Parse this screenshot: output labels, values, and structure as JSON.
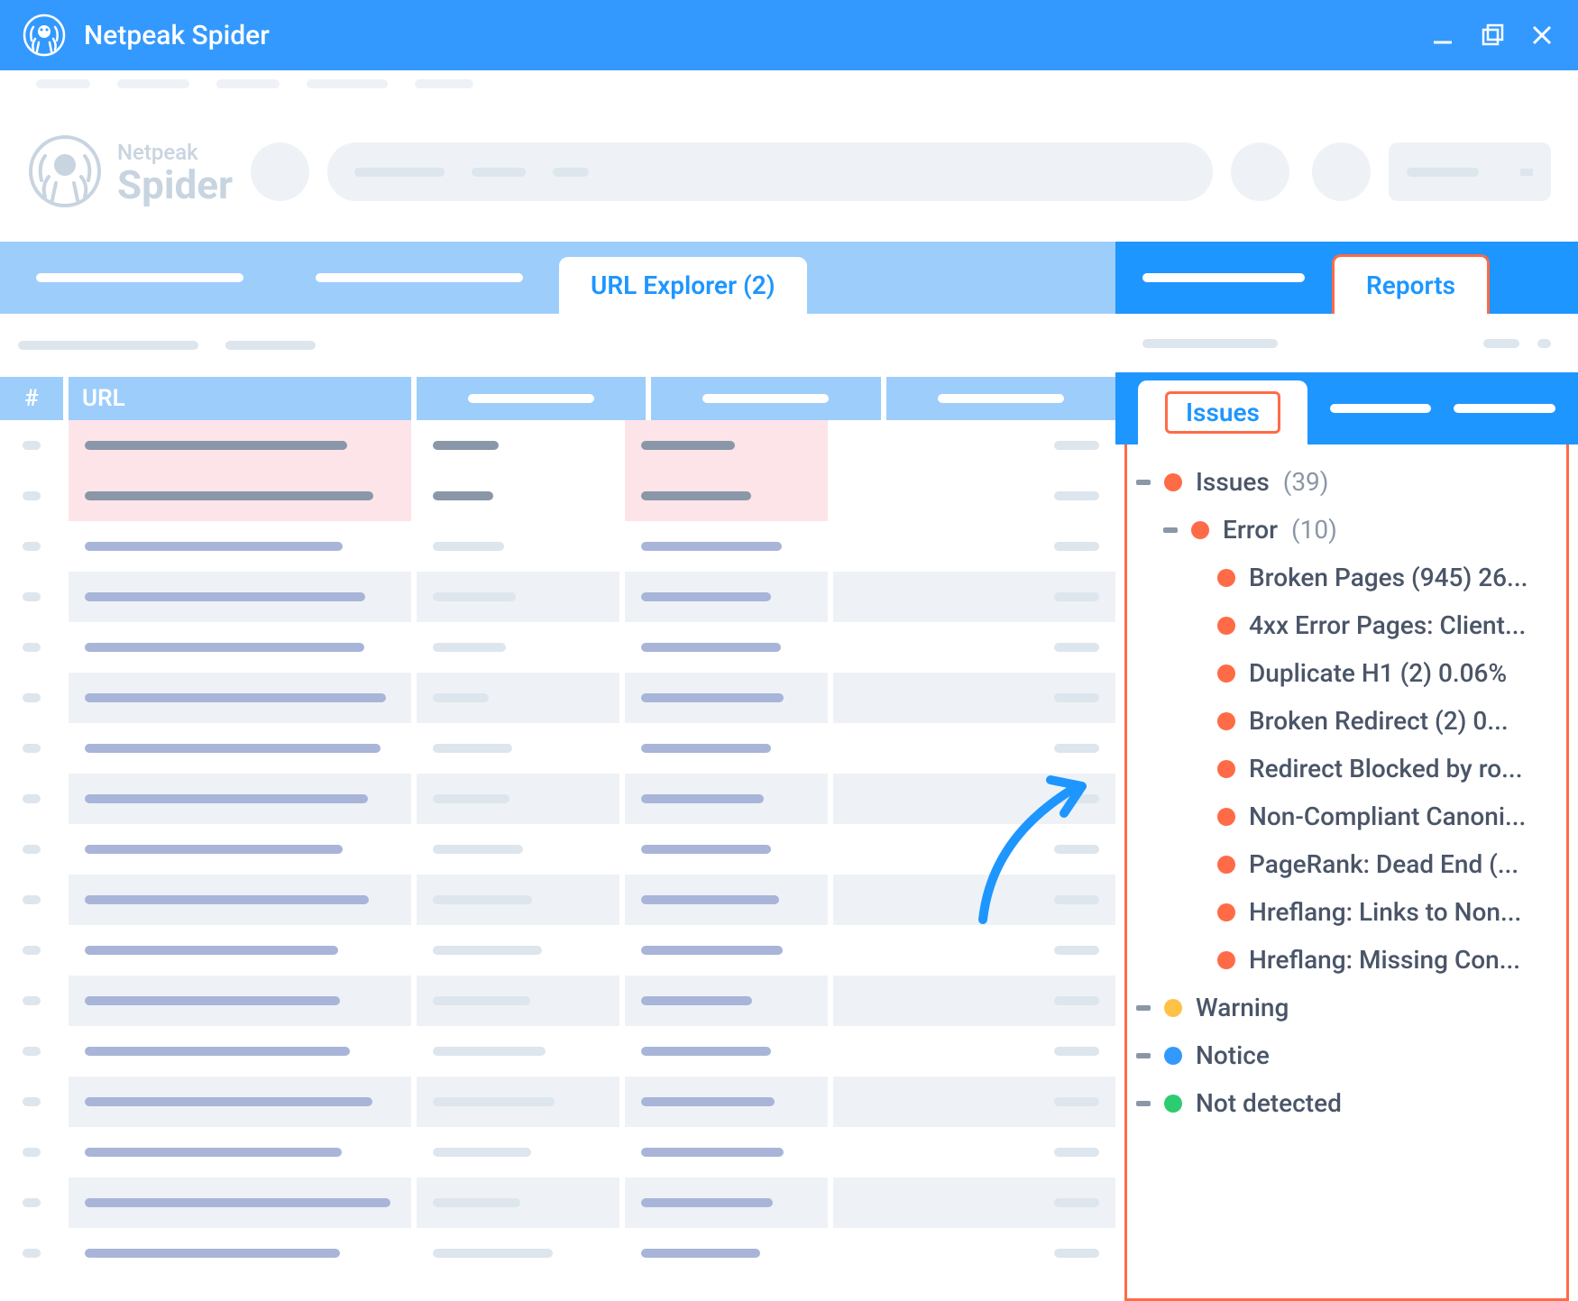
{
  "window": {
    "title": "Netpeak Spider"
  },
  "logo": {
    "line1": "Netpeak",
    "line2": "Spider"
  },
  "tabs": {
    "url_explorer": "URL Explorer (2)",
    "reports": "Reports",
    "issues": "Issues"
  },
  "table": {
    "col_num": "#",
    "col_url": "URL"
  },
  "issues_tree": {
    "root": {
      "label": "Issues",
      "count": "(39)",
      "color": "#ff6b47"
    },
    "error": {
      "label": "Error",
      "count": "(10)",
      "color": "#ff6b47"
    },
    "errors": [
      {
        "label": "Broken Pages (945) 26...",
        "color": "#ff6b47"
      },
      {
        "label": "4xx Error Pages: Client...",
        "color": "#ff6b47"
      },
      {
        "label": "Duplicate H1 (2) 0.06%",
        "color": "#ff6b47"
      },
      {
        "label": "Broken Redirect (2) 0...",
        "color": "#ff6b47"
      },
      {
        "label": "Redirect Blocked by ro...",
        "color": "#ff6b47"
      },
      {
        "label": "Non-Compliant Canoni...",
        "color": "#ff6b47"
      },
      {
        "label": "PageRank: Dead End (...",
        "color": "#ff6b47"
      },
      {
        "label": "Hreflang: Links to Non...",
        "color": "#ff6b47"
      },
      {
        "label": "Hreflang: Missing Con...",
        "color": "#ff6b47"
      }
    ],
    "warning": {
      "label": "Warning",
      "color": "#ffc247"
    },
    "notice": {
      "label": "Notice",
      "color": "#3399ff"
    },
    "not_detected": {
      "label": "Not detected",
      "color": "#2ecc71"
    }
  },
  "colors": {
    "titlebar": "#3399ff",
    "tab_blue": "#9dcdfb",
    "bright_blue": "#1e96ff",
    "highlight_border": "#ff6b47",
    "ph_light": "#eef2f6",
    "ph_med": "#dde5ed"
  }
}
